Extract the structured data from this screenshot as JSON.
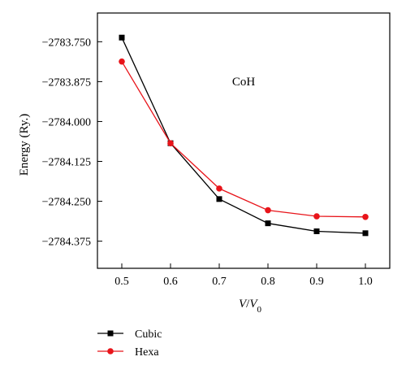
{
  "chart_data": {
    "type": "line",
    "title": "",
    "annotation": "CoH",
    "xlabel_main": "V",
    "xlabel_sep": "/",
    "xlabel_base": "V",
    "xlabel_sub": "0",
    "ylabel": "Energy (Ry.)",
    "xlim": [
      0.45,
      1.05
    ],
    "ylim": [
      -2784.46,
      -2783.66
    ],
    "xticks": [
      0.5,
      0.6,
      0.7,
      0.8,
      0.9,
      1.0
    ],
    "xtick_labels": [
      "0.5",
      "0.6",
      "0.7",
      "0.8",
      "0.9",
      "1.0"
    ],
    "yticks": [
      -2783.75,
      -2783.875,
      -2784.0,
      -2784.125,
      -2784.25,
      -2784.375
    ],
    "ytick_labels": [
      "−2783.750",
      "−2783.875",
      "−2784.000",
      "−2784.125",
      "−2784.250",
      "−2784.375"
    ],
    "grid": false,
    "legend_position": "bottom-left, below plot",
    "x": [
      0.5,
      0.6,
      0.7,
      0.8,
      0.9,
      1.0
    ],
    "series": [
      {
        "name": "Cubic",
        "color": "#000000",
        "marker": "square",
        "values": [
          -2783.737,
          -2784.068,
          -2784.243,
          -2784.319,
          -2784.344,
          -2784.35
        ]
      },
      {
        "name": "Hexa",
        "color": "#e8141a",
        "marker": "circle",
        "values": [
          -2783.812,
          -2784.068,
          -2784.21,
          -2784.278,
          -2784.297,
          -2784.299
        ]
      }
    ]
  }
}
